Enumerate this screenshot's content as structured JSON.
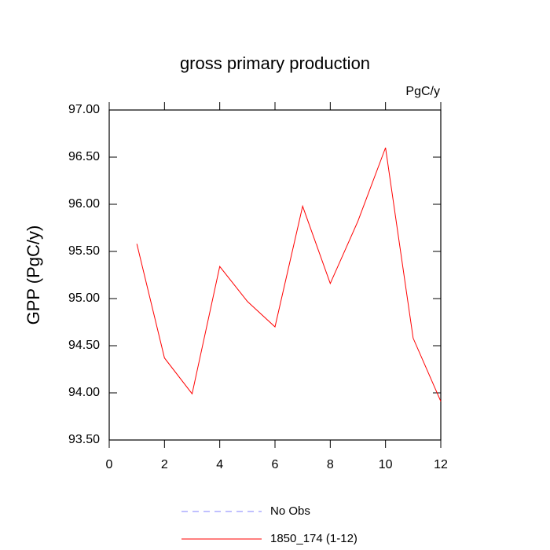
{
  "chart_data": {
    "type": "line",
    "title": "gross primary production",
    "units": "PgC/y",
    "ylabel": "GPP  (PgC/y)",
    "x": [
      1,
      2,
      3,
      4,
      5,
      6,
      7,
      8,
      9,
      10,
      11,
      12
    ],
    "series": [
      {
        "name": "No Obs",
        "color": "#8080ff",
        "dashed": true,
        "values": [
          null,
          null,
          null,
          null,
          null,
          null,
          null,
          null,
          null,
          null,
          null,
          null
        ]
      },
      {
        "name": "1850_174 (1-12)",
        "color": "#ff0000",
        "dashed": false,
        "values": [
          95.58,
          94.37,
          93.99,
          95.34,
          94.97,
          94.7,
          95.98,
          95.16,
          95.82,
          96.6,
          94.58,
          93.91
        ]
      }
    ],
    "xlim": [
      0,
      12
    ],
    "xticks": [
      0,
      2,
      4,
      6,
      8,
      10,
      12
    ],
    "ylim": [
      93.5,
      97
    ],
    "yticks": [
      {
        "value": 93.5,
        "label": "93.50"
      },
      {
        "value": 94,
        "label": "94.00"
      },
      {
        "value": 94.5,
        "label": "94.50"
      },
      {
        "value": 95,
        "label": "95.00"
      },
      {
        "value": 95.5,
        "label": "95.50"
      },
      {
        "value": 96,
        "label": "96.00"
      },
      {
        "value": 96.5,
        "label": "96.50"
      },
      {
        "value": 97,
        "label": "97.00"
      }
    ]
  }
}
